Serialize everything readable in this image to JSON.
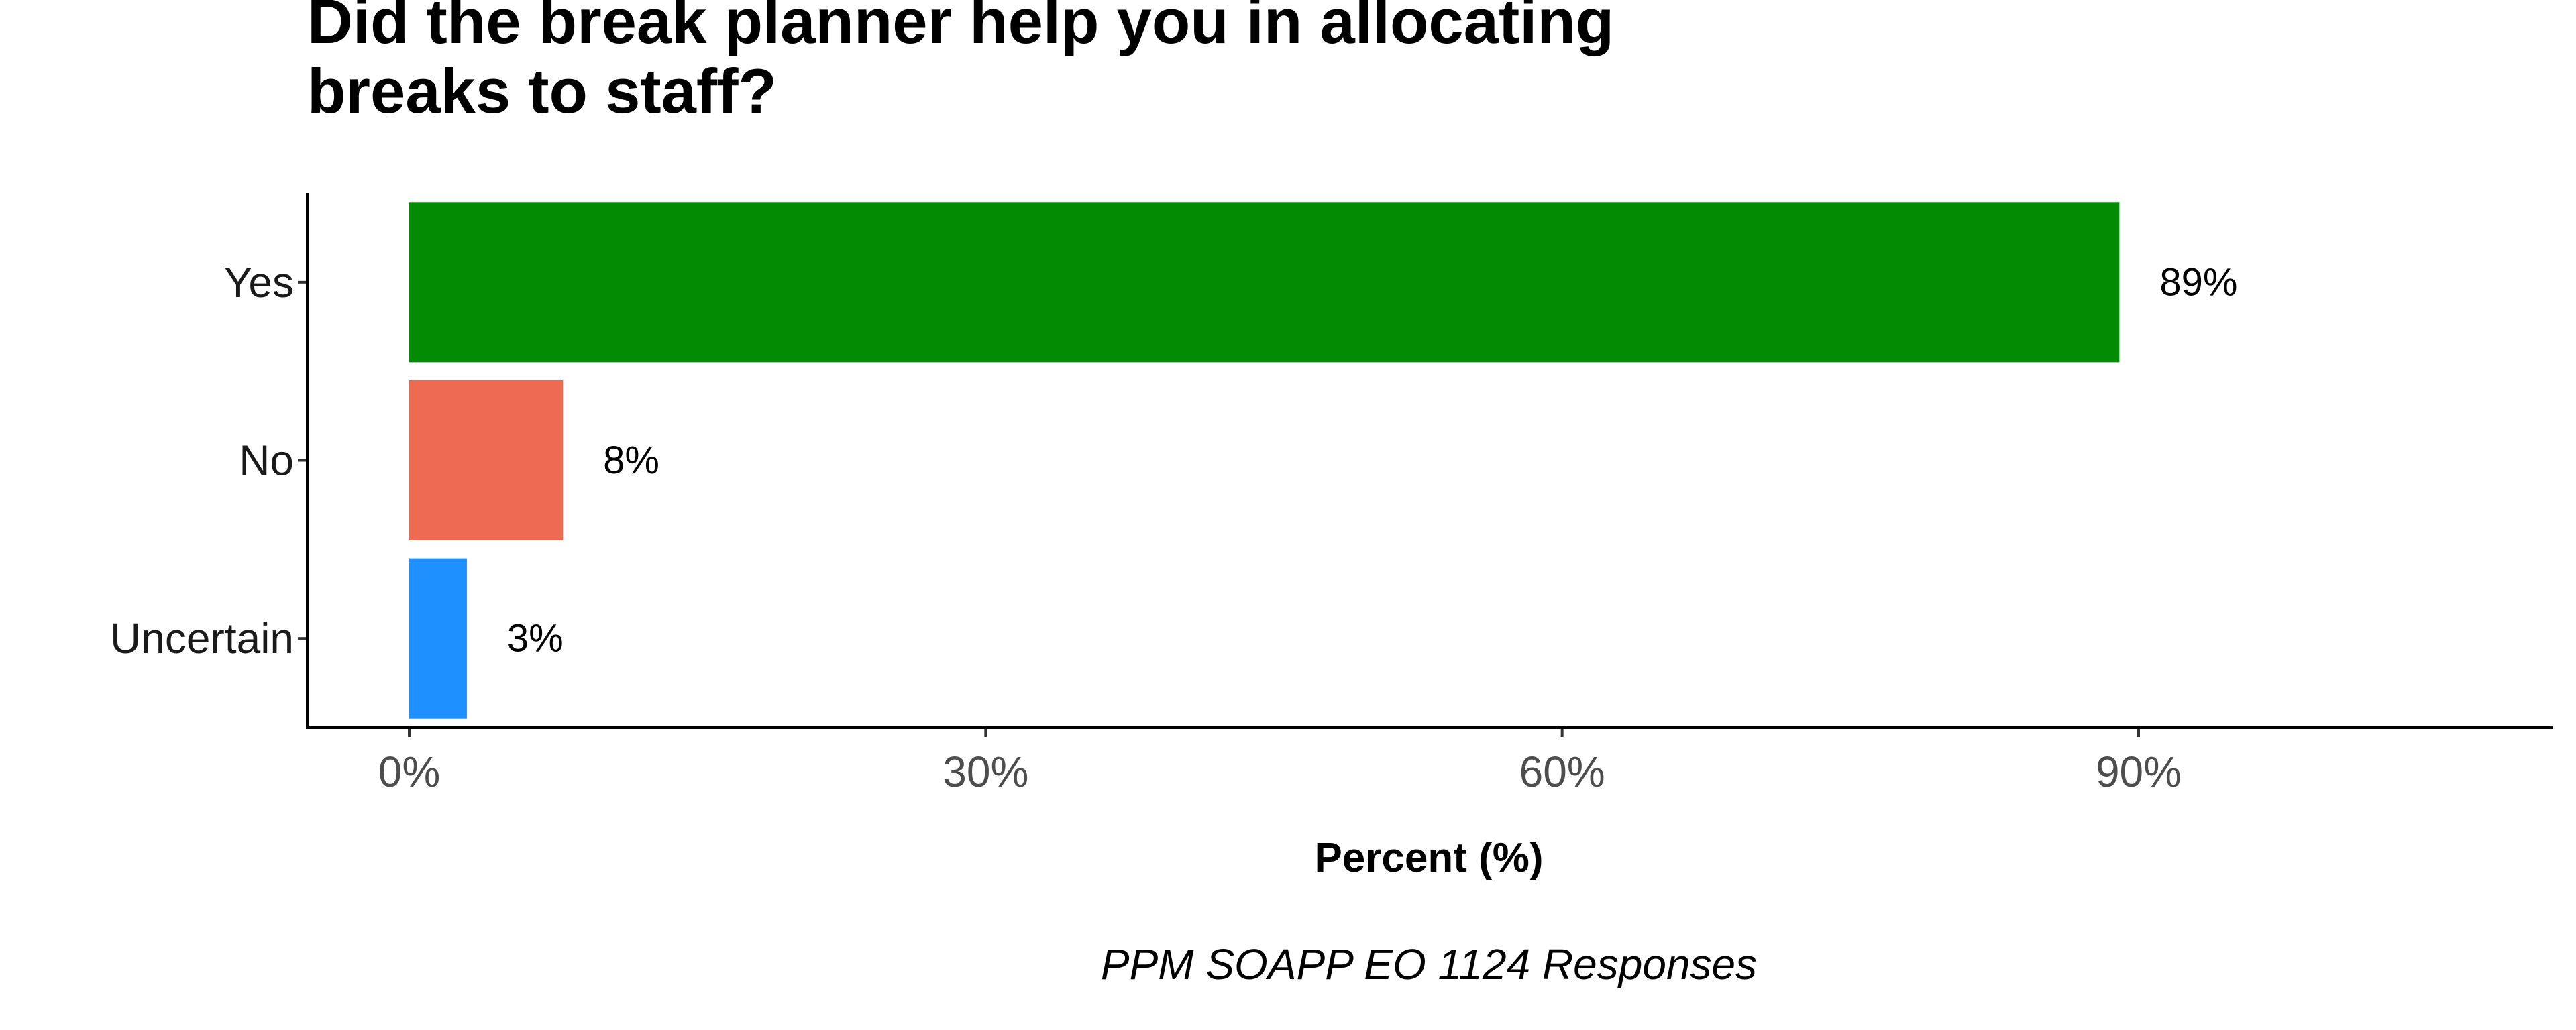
{
  "chart_data": {
    "type": "bar",
    "orientation": "horizontal",
    "title_lines": [
      "Did the break planner help you in allocating",
      "breaks to staff?"
    ],
    "categories": [
      "Yes",
      "No",
      "Uncertain"
    ],
    "values": [
      89,
      8,
      3
    ],
    "value_labels": [
      "89%",
      "8%",
      "3%"
    ],
    "colors": [
      "#038C03",
      "#EE6A52",
      "#1E90FF"
    ],
    "xlabel": "Percent (%)",
    "xlim": [
      0,
      110
    ],
    "xticks": [
      0,
      30,
      60,
      90
    ],
    "xtick_labels": [
      "0%",
      "30%",
      "60%",
      "90%"
    ],
    "caption": "PPM SOAPP EO 1124 Responses",
    "grid": false,
    "legend": "none"
  }
}
